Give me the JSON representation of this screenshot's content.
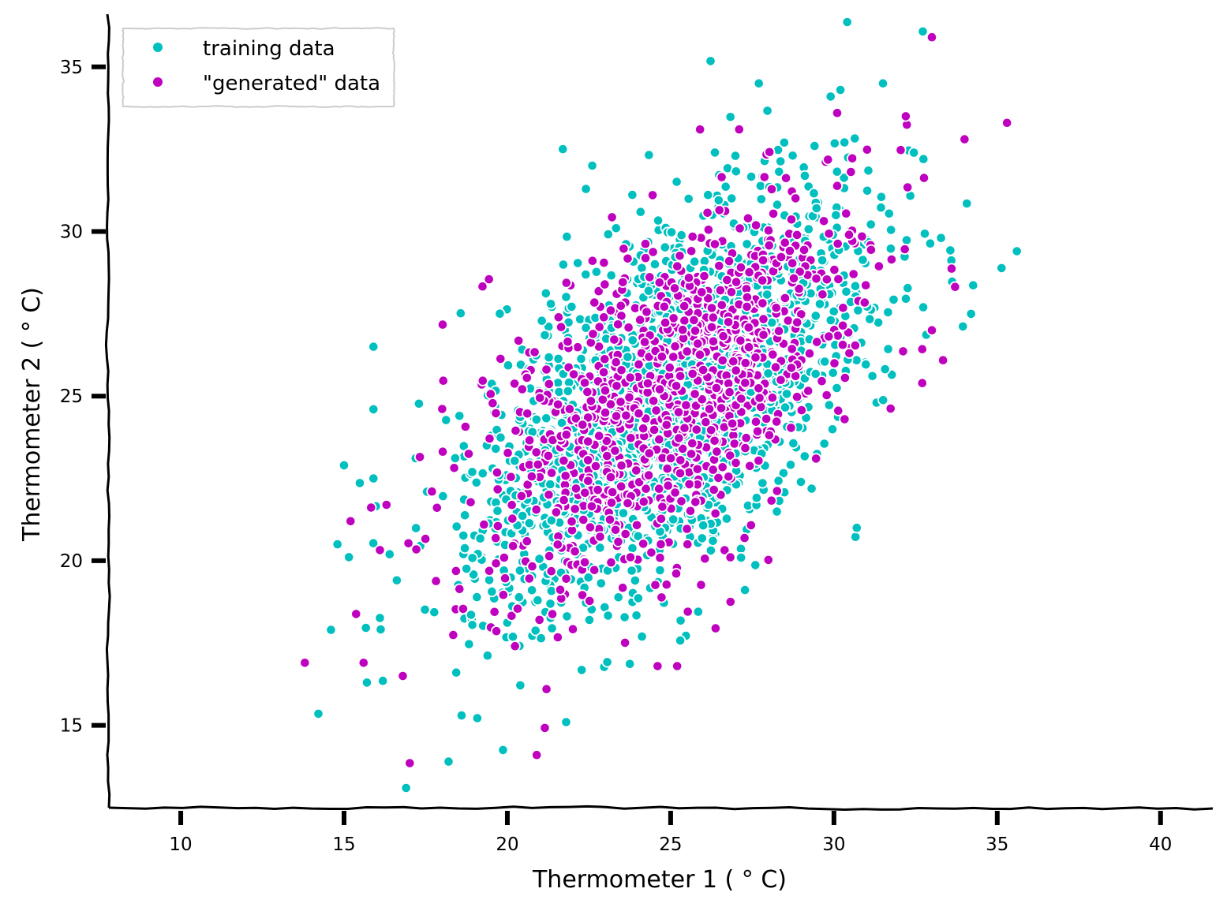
{
  "chart_data": {
    "type": "scatter",
    "style": "xkcd hand-drawn",
    "xlabel": "Thermometer 1 ( $^\\circ$C)",
    "xlabel_display": "Thermometer 1 ( ° C)",
    "ylabel": "Thermometer 2 ( ° C)",
    "xlim": [
      7.8,
      41.6
    ],
    "ylim": [
      12.5,
      36.6
    ],
    "x_ticks": [
      10,
      15,
      20,
      25,
      30,
      35,
      40
    ],
    "y_ticks": [
      15,
      20,
      25,
      30,
      35
    ],
    "grid": false,
    "legend_position": "top-left",
    "series": [
      {
        "name": "training data",
        "color": "#00bfbf",
        "edge_color": "#ffffff",
        "count": 2000,
        "distribution": {
          "mean": [
            25,
            25
          ],
          "std": [
            3,
            3
          ],
          "correlation": 0.6
        },
        "seed": 7
      },
      {
        "name": "\"generated\" data",
        "color": "#bf00bf",
        "edge_color": "#ffffff",
        "count": 1000,
        "distribution": {
          "mean": [
            25,
            25
          ],
          "std": [
            3,
            3
          ],
          "correlation": 0.6
        },
        "seed": 13
      }
    ],
    "notable_points": {
      "training data": [
        [
          14.6,
          17.9
        ],
        [
          15.7,
          16.3
        ],
        [
          16.9,
          13.1
        ],
        [
          18.2,
          13.9
        ],
        [
          18.6,
          15.3
        ],
        [
          21.8,
          15.1
        ],
        [
          15.0,
          22.9
        ],
        [
          14.8,
          20.5
        ],
        [
          15.9,
          26.5
        ],
        [
          15.9,
          24.6
        ],
        [
          15.9,
          22.5
        ],
        [
          21.7,
          32.5
        ],
        [
          22.6,
          32.0
        ],
        [
          27.7,
          34.5
        ],
        [
          29.9,
          34.1
        ],
        [
          30.2,
          34.3
        ],
        [
          31.5,
          34.5
        ],
        [
          35.6,
          29.4
        ],
        [
          34.2,
          27.5
        ],
        [
          30.7,
          21.0
        ]
      ],
      "\"generated\" data": [
        [
          13.8,
          16.9
        ],
        [
          15.6,
          16.9
        ],
        [
          15.2,
          21.2
        ],
        [
          16.8,
          16.5
        ],
        [
          20.9,
          14.1
        ],
        [
          21.2,
          16.1
        ],
        [
          33.0,
          35.9
        ],
        [
          35.3,
          33.3
        ],
        [
          34.0,
          32.8
        ],
        [
          32.2,
          33.5
        ],
        [
          30.1,
          33.6
        ],
        [
          25.9,
          33.1
        ],
        [
          27.1,
          33.1
        ],
        [
          33.0,
          27.0
        ],
        [
          24.6,
          16.8
        ],
        [
          25.2,
          16.8
        ]
      ]
    }
  }
}
